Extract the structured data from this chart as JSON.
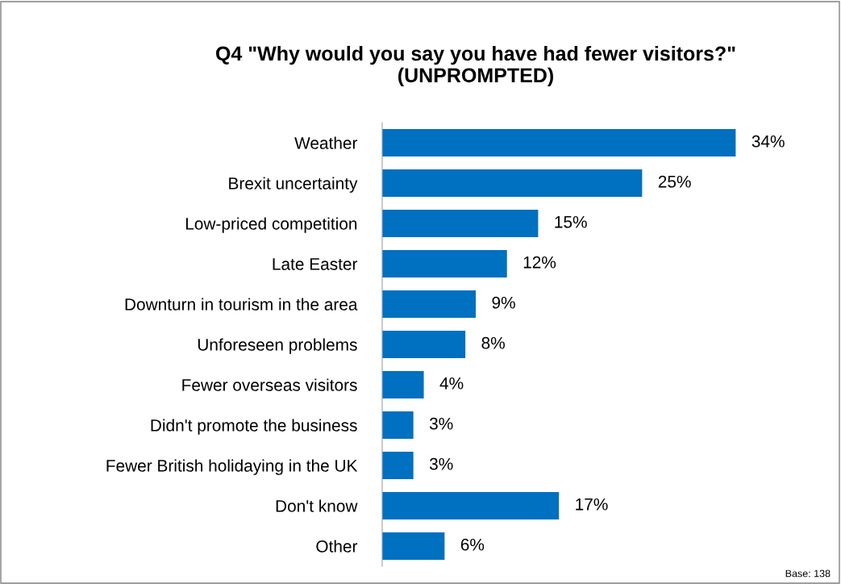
{
  "chart_data": {
    "type": "bar",
    "orientation": "horizontal",
    "title": "Q4 \"Why would you say you have had fewer visitors?\"\n(UNPROMPTED)",
    "categories": [
      "Weather",
      "Brexit uncertainty",
      "Low-priced competition",
      "Late Easter",
      "Downturn in tourism in the area",
      "Unforeseen problems",
      "Fewer overseas visitors",
      "Didn't promote the business",
      "Fewer British holidaying in the UK",
      "Don't know",
      "Other"
    ],
    "values": [
      34,
      25,
      15,
      12,
      9,
      8,
      4,
      3,
      3,
      17,
      6
    ],
    "value_labels": [
      "34%",
      "25%",
      "15%",
      "12%",
      "9%",
      "8%",
      "4%",
      "3%",
      "3%",
      "17%",
      "6%"
    ],
    "color": "#0070c0",
    "grid": false,
    "legend": false,
    "tick_labels": "y",
    "annotations": [
      "Base: 138"
    ]
  }
}
